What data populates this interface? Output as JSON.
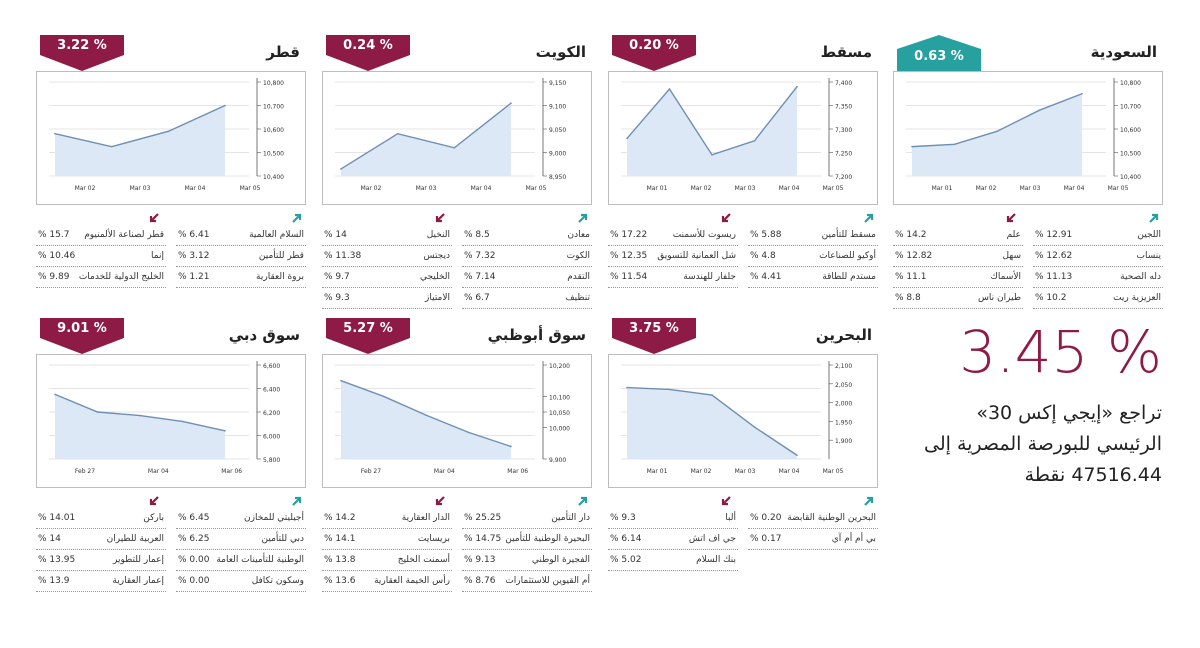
{
  "colors": {
    "down": "#8e1b45",
    "up": "#27a0a0",
    "line": "#6e8fb3",
    "fill": "#dce8f5",
    "grid": "#c9c9c9"
  },
  "headline": {
    "value": "3.45 %",
    "text": "تراجع «إيجي إكس 30» الرئيسي للبورصة المصرية إلى 47516.44 نقطة"
  },
  "panels": [
    {
      "title": "السعودية",
      "badge": "0.63 %",
      "direction": "up",
      "chart_data": {
        "type": "area",
        "x": [
          "Mar 01",
          "Mar 02",
          "Mar 03",
          "Mar 04",
          "Mar 05"
        ],
        "xticks": [
          "Mar 01",
          "Mar 02",
          "Mar 03",
          "Mar 04",
          "Mar 05"
        ],
        "y": [
          10525,
          10535,
          10590,
          10680,
          10750
        ],
        "ylim": [
          10400,
          10800
        ],
        "yticks": [
          "10,400",
          "10,500",
          "10,600",
          "10,700",
          "10,800"
        ],
        "ytick_values": [
          10400,
          10500,
          10600,
          10700,
          10800
        ]
      },
      "gainers": [
        {
          "name": "اللجين",
          "value": "12.91"
        },
        {
          "name": "ينساب",
          "value": "12.62"
        },
        {
          "name": "دله الصحية",
          "value": "11.13"
        },
        {
          "name": "العزيزية ريت",
          "value": "10.2"
        }
      ],
      "losers": [
        {
          "name": "علم",
          "value": "14.2"
        },
        {
          "name": "سهل",
          "value": "12.82"
        },
        {
          "name": "الأسماك",
          "value": "11.1"
        },
        {
          "name": "طيران ناس",
          "value": "8.8"
        }
      ]
    },
    {
      "title": "مسقط",
      "badge": "0.20 %",
      "direction": "down",
      "chart_data": {
        "type": "area",
        "x": [
          "Feb 28",
          "Mar 01",
          "Mar 02",
          "Mar 03",
          "Mar 04"
        ],
        "xticks": [
          "Mar 01",
          "Mar 02",
          "Mar 03",
          "Mar 04",
          "Mar 05"
        ],
        "y": [
          7280,
          7385,
          7245,
          7275,
          7390
        ],
        "ylim": [
          7200,
          7400
        ],
        "yticks": [
          "7,200",
          "7,250",
          "7,300",
          "7,350",
          "7,400"
        ],
        "ytick_values": [
          7200,
          7250,
          7300,
          7350,
          7400
        ]
      },
      "gainers": [
        {
          "name": "مسقط للتأمين",
          "value": "5.88"
        },
        {
          "name": "أوكيو للصناعات",
          "value": "4.8"
        },
        {
          "name": "مستدم للطاقة",
          "value": "4.41"
        }
      ],
      "losers": [
        {
          "name": "ريسوت للأسمنت",
          "value": "17.22"
        },
        {
          "name": "شل العمانية للتسويق",
          "value": "12.35"
        },
        {
          "name": "جلفار للهندسة",
          "value": "11.54"
        }
      ]
    },
    {
      "title": "الكويت",
      "badge": "0.24 %",
      "direction": "down",
      "chart_data": {
        "type": "area",
        "x": [
          "Mar 01",
          "Mar 02",
          "Mar 03",
          "Mar 04"
        ],
        "xticks": [
          "Mar 02",
          "Mar 03",
          "Mar 04",
          "Mar 05"
        ],
        "y": [
          8965,
          9040,
          9010,
          9105
        ],
        "ylim": [
          8950,
          9150
        ],
        "yticks": [
          "8,950",
          "9,000",
          "9,050",
          "9,100",
          "9,150"
        ],
        "ytick_values": [
          8950,
          9000,
          9050,
          9100,
          9150
        ]
      },
      "gainers": [
        {
          "name": "معادن",
          "value": "8.5"
        },
        {
          "name": "الكوت",
          "value": "7.32"
        },
        {
          "name": "التقدم",
          "value": "7.14"
        },
        {
          "name": "تنظيف",
          "value": "6.7"
        }
      ],
      "losers": [
        {
          "name": "النخيل",
          "value": "14"
        },
        {
          "name": "ديجتس",
          "value": "11.38"
        },
        {
          "name": "الخليجي",
          "value": "9.7"
        },
        {
          "name": "الامتياز",
          "value": "9.3"
        }
      ]
    },
    {
      "title": "قطر",
      "badge": "3.22 %",
      "direction": "down",
      "chart_data": {
        "type": "area",
        "x": [
          "Mar 01",
          "Mar 02",
          "Mar 03",
          "Mar 04"
        ],
        "xticks": [
          "Mar 02",
          "Mar 03",
          "Mar 04",
          "Mar 05"
        ],
        "y": [
          10580,
          10525,
          10590,
          10700
        ],
        "ylim": [
          10400,
          10800
        ],
        "yticks": [
          "10,400",
          "10,500",
          "10,600",
          "10,700",
          "10,800"
        ],
        "ytick_values": [
          10400,
          10500,
          10600,
          10700,
          10800
        ]
      },
      "gainers": [
        {
          "name": "السلام العالمية",
          "value": "6.41"
        },
        {
          "name": "قطر للتأمين",
          "value": "3.12"
        },
        {
          "name": "بروة العقارية",
          "value": "1.21"
        }
      ],
      "losers": [
        {
          "name": "قطر لصناعة الألمنيوم",
          "value": "15.7"
        },
        {
          "name": "إنما",
          "value": "10.46"
        },
        {
          "name": "الخليج الدولية للخدمات",
          "value": "9.89"
        }
      ]
    },
    {
      "title": "البحرين",
      "badge": "3.75 %",
      "direction": "down",
      "chart_data": {
        "type": "area",
        "x": [
          "Feb 28",
          "Mar 01",
          "Mar 02",
          "Mar 03",
          "Mar 04"
        ],
        "xticks": [
          "Mar 01",
          "Mar 02",
          "Mar 03",
          "Mar 04",
          "Mar 05"
        ],
        "y": [
          2040,
          2035,
          2020,
          1935,
          1860
        ],
        "ylim": [
          1850,
          2100
        ],
        "yticks": [
          "1,900",
          "1,950",
          "2,000",
          "2,050",
          "2,100"
        ],
        "ytick_values": [
          1900,
          1950,
          2000,
          2050,
          2100
        ]
      },
      "gainers": [
        {
          "name": "البحرين الوطنية القابضة",
          "value": "0.20"
        },
        {
          "name": "بي أم أم آي",
          "value": "0.17"
        }
      ],
      "losers": [
        {
          "name": "ألبا",
          "value": "9.3"
        },
        {
          "name": "جي اف اتش",
          "value": "6.14"
        },
        {
          "name": "بنك السلام",
          "value": "5.02"
        }
      ]
    },
    {
      "title": "سوق أبوظبي",
      "badge": "5.27 %",
      "direction": "down",
      "chart_data": {
        "type": "area",
        "x": [
          "Feb 27",
          "Mar 01",
          "Mar 02",
          "Mar 03",
          "Mar 04"
        ],
        "xticks": [
          "Feb 27",
          "Mar 04",
          "Mar 06"
        ],
        "y": [
          10150,
          10100,
          10040,
          9985,
          9940
        ],
        "ylim": [
          9900,
          10200
        ],
        "yticks": [
          "9,900",
          "10,000",
          "10,050",
          "10,100",
          "10,200"
        ],
        "ytick_values": [
          9900,
          10000,
          10050,
          10100,
          10200
        ]
      },
      "gainers": [
        {
          "name": "دار التأمين",
          "value": "25.25"
        },
        {
          "name": "البحيرة الوطنية للتأمين",
          "value": "14.75"
        },
        {
          "name": "الفجيرة الوطني",
          "value": "9.13"
        },
        {
          "name": "أم القيوين للاستثمارات",
          "value": "8.76"
        }
      ],
      "losers": [
        {
          "name": "الدار العقارية",
          "value": "14.2"
        },
        {
          "name": "بريسايت",
          "value": "14.1"
        },
        {
          "name": "أسمنت الخليج",
          "value": "13.8"
        },
        {
          "name": "رأس الخيمة العقارية",
          "value": "13.6"
        }
      ]
    },
    {
      "title": "سوق دبي",
      "badge": "9.01 %",
      "direction": "down",
      "chart_data": {
        "type": "area",
        "x": [
          "Feb 27",
          "Mar 01",
          "Mar 02",
          "Mar 03",
          "Mar 04"
        ],
        "xticks": [
          "Feb 27",
          "Mar 04",
          "Mar 06"
        ],
        "y": [
          6350,
          6200,
          6170,
          6120,
          6040
        ],
        "ylim": [
          5800,
          6600
        ],
        "yticks": [
          "5,800",
          "6,000",
          "6,200",
          "6,400",
          "6,600"
        ],
        "ytick_values": [
          5800,
          6000,
          6200,
          6400,
          6600
        ]
      },
      "gainers": [
        {
          "name": "أجيليتي للمخازن",
          "value": "6.45"
        },
        {
          "name": "دبي للتأمين",
          "value": "6.25"
        },
        {
          "name": "الوطنية للتأمينات العامة",
          "value": "0.00"
        },
        {
          "name": "وسكون تكافل",
          "value": "0.00"
        }
      ],
      "losers": [
        {
          "name": "باركن",
          "value": "14.01"
        },
        {
          "name": "العربية للطيران",
          "value": "14"
        },
        {
          "name": "إعمار للتطوير",
          "value": "13.95"
        },
        {
          "name": "إعمار العقارية",
          "value": "13.9"
        }
      ]
    }
  ]
}
